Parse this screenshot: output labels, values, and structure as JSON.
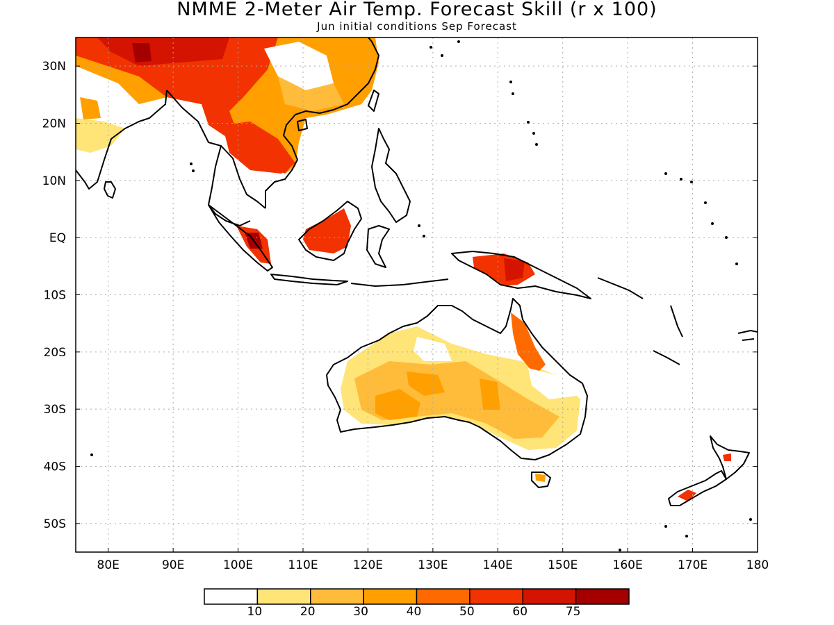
{
  "title": "NMME 2-Meter Air Temp. Forecast Skill (r x 100)",
  "subtitle": "Jun initial conditions  Sep Forecast",
  "map": {
    "lon_range": [
      75,
      180
    ],
    "lat_range": [
      -55,
      35
    ],
    "lon_labels": [
      "80E",
      "90E",
      "100E",
      "110E",
      "120E",
      "130E",
      "140E",
      "150E",
      "160E",
      "170E",
      "180"
    ],
    "lat_labels": [
      "30N",
      "20N",
      "10N",
      "EQ",
      "10S",
      "20S",
      "30S",
      "40S",
      "50S"
    ]
  },
  "legend": {
    "colors": [
      "#ffffff",
      "#ffe477",
      "#ffbc3a",
      "#ff9f00",
      "#ff6a00",
      "#f23200",
      "#d41400",
      "#a50000"
    ],
    "labels": [
      "10",
      "20",
      "30",
      "40",
      "50",
      "60",
      "75"
    ]
  }
}
